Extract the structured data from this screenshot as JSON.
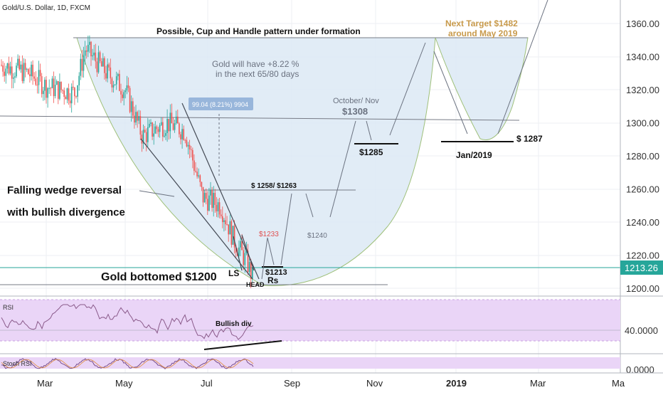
{
  "symbol_title": "Gold/U.S. Dollar, 1D, FXCM",
  "price_axis": {
    "ticks": [
      "1360.00",
      "1340.00",
      "1320.00",
      "1300.00",
      "1280.00",
      "1260.00",
      "1240.00",
      "1220.00",
      "1200.00"
    ],
    "current_price": "1213.26",
    "current_price_color": "#26a69a"
  },
  "time_axis": {
    "labels": [
      "Mar",
      "May",
      "Jul",
      "Sep",
      "Nov",
      "2019",
      "Mar",
      "Ma"
    ]
  },
  "annotations": {
    "pattern_title": "Possible, Cup and Handle pattern under formation",
    "target_line1": "Next Target  $1482",
    "target_line2": "around May 2019",
    "gain_line1": "Gold will have +8.22 %",
    "gain_line2": "in the next 65/80 days",
    "measure_box": "99.04 (8.21%) 9904",
    "oct_nov_line1": "October/ Nov",
    "oct_nov_line2": "$1308",
    "level_1285": "$1285",
    "level_1287": "$ 1287",
    "jan_2019": "Jan/2019",
    "level_1258": "$ 1258/ $1263",
    "wedge_line1": "Falling wedge reversal",
    "wedge_line2": "with  bullish divergence",
    "level_1233": "$1233",
    "level_1240": "$1240",
    "ls": "LS",
    "level_1213": "$1213",
    "rs": "Rs",
    "head": "HEAD",
    "bottom": "Gold bottomed $1200"
  },
  "rsi_panel": {
    "label": "RSI",
    "level": "40.0000",
    "divergence_label": "Bullish div"
  },
  "stoch_panel": {
    "label": "Stoch RSI",
    "level": "0.0000"
  },
  "colors": {
    "up_candle": "#26a69a",
    "down_candle": "#ef5350",
    "cup_fill": "#dce9f5",
    "rsi_band": "#ead5f7",
    "target_text": "#c89a4b",
    "level_1233_text": "#e05050"
  },
  "chart_data": {
    "type": "candlestick",
    "instrument": "Gold/U.S. Dollar",
    "timeframe": "1D",
    "ylim": [
      1195,
      1375
    ],
    "last_price": 1213.26,
    "approx_closes_by_period": {
      "Feb": 1335,
      "Mar": 1325,
      "Apr": 1338,
      "May": 1300,
      "Jun": 1290,
      "Jul": 1235,
      "Aug": 1205
    }
  }
}
